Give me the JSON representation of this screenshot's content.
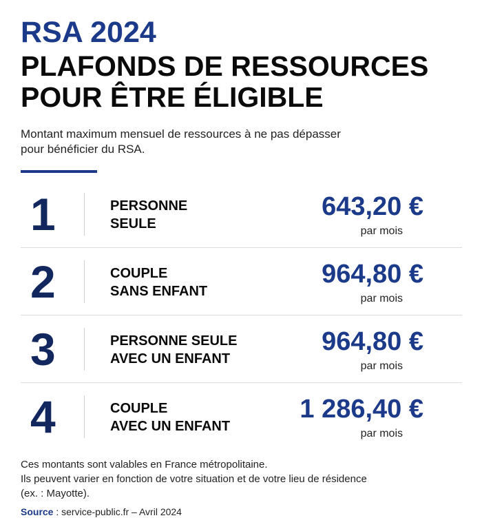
{
  "header": {
    "title_line1": "RSA 2024",
    "title_line2": "PLAFONDS DE RESSOURCES",
    "title_line3": "POUR ÊTRE ÉLIGIBLE",
    "subtitle_line1": "Montant maximum mensuel de ressources à ne pas dépasser",
    "subtitle_line2": "pour bénéficier du RSA."
  },
  "rows": [
    {
      "number": "1",
      "label_line1": "PERSONNE",
      "label_line2": "SEULE",
      "amount": "643,20 €",
      "period": "par mois"
    },
    {
      "number": "2",
      "label_line1": "COUPLE",
      "label_line2": "SANS ENFANT",
      "amount": "964,80 €",
      "period": "par mois"
    },
    {
      "number": "3",
      "label_line1": "PERSONNE SEULE",
      "label_line2": "AVEC UN ENFANT",
      "amount": "964,80 €",
      "period": "par mois"
    },
    {
      "number": "4",
      "label_line1": "COUPLE",
      "label_line2": "AVEC UN ENFANT",
      "amount": "1 286,40 €",
      "period": "par mois"
    }
  ],
  "notes": {
    "line1": "Ces montants sont valables en France métropolitaine.",
    "line2": "Ils peuvent varier en fonction de votre situation et de votre lieu de résidence",
    "line3": "(ex. : Mayotte)."
  },
  "source": {
    "label": "Source",
    "separator": " : ",
    "text": "service-public.fr – Avril 2024"
  },
  "colors": {
    "accent": "#1c3a8a",
    "number": "#12275e",
    "text": "#0a0a0a"
  }
}
